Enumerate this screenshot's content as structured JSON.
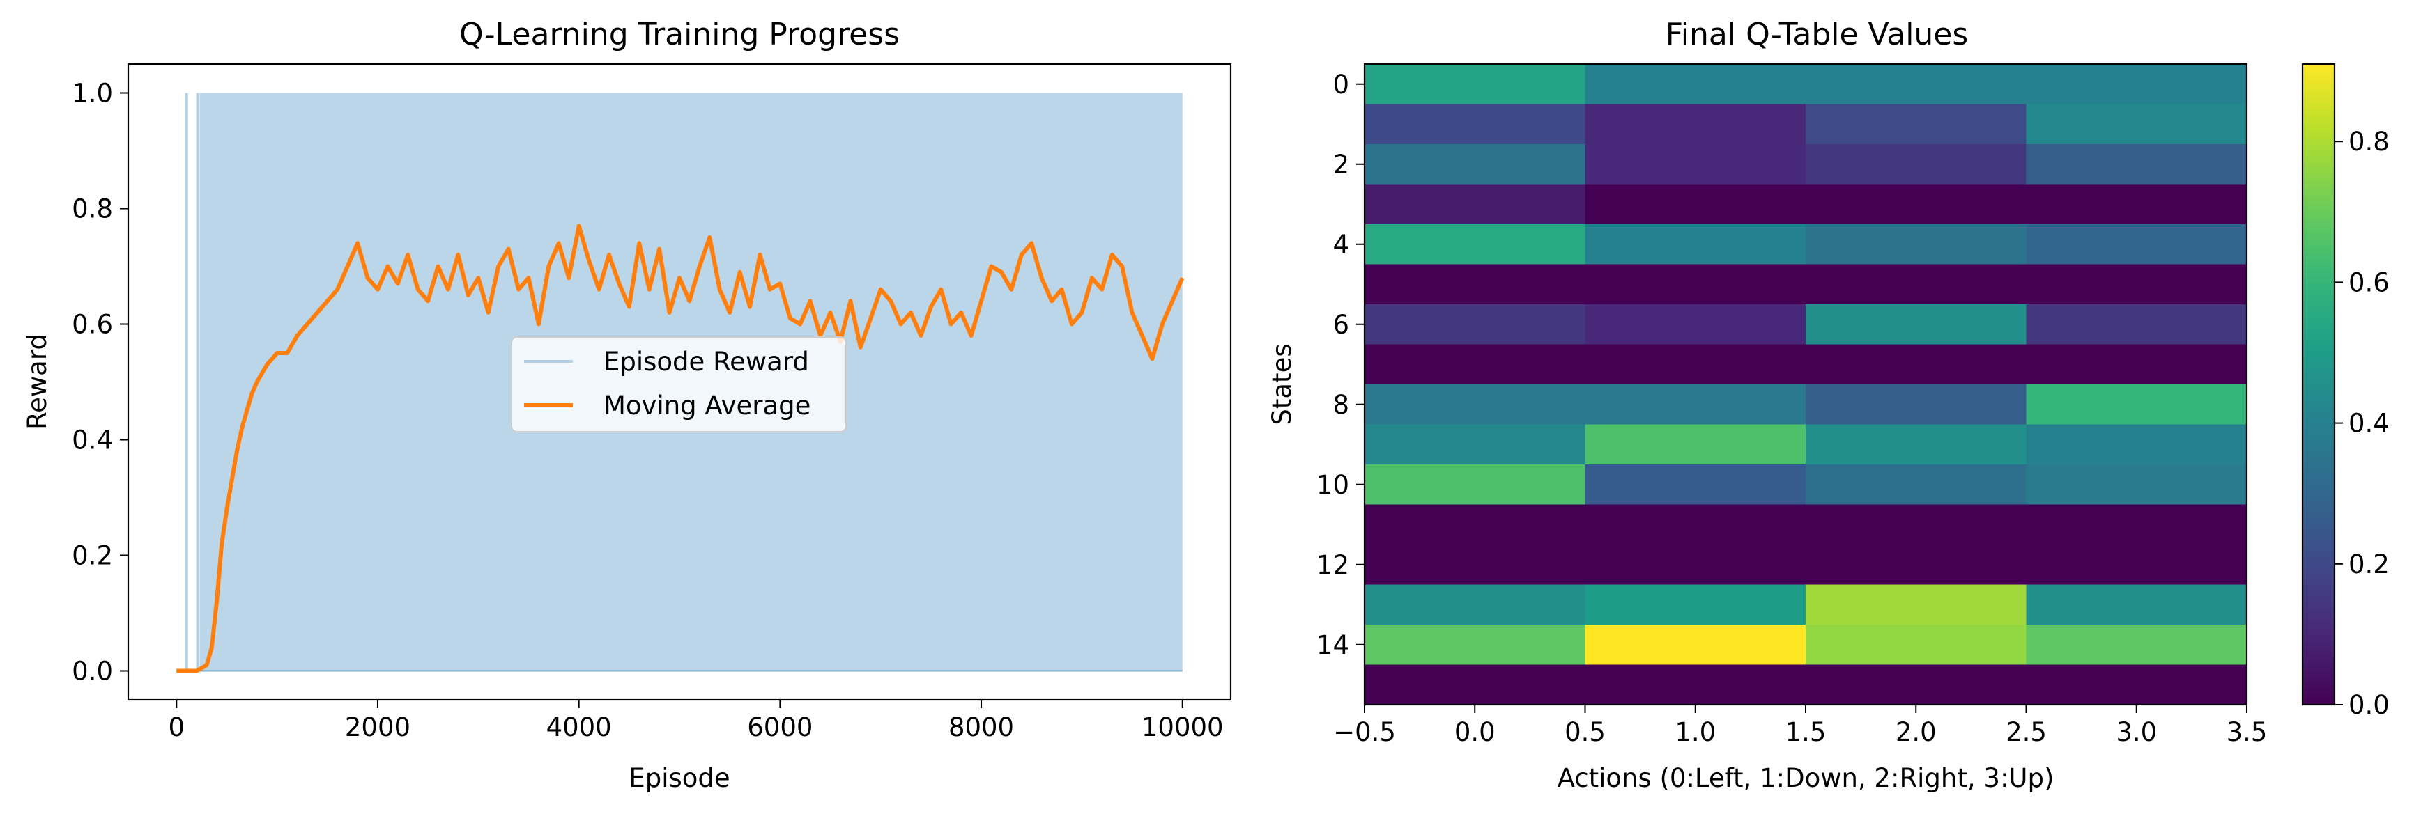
{
  "chart_data": [
    {
      "type": "line",
      "title": "Q-Learning Training Progress",
      "xlabel": "Episode",
      "ylabel": "Reward",
      "xlim": [
        -480,
        10480
      ],
      "ylim": [
        -0.05,
        1.05
      ],
      "xticks": [
        0,
        2000,
        4000,
        6000,
        8000,
        10000
      ],
      "yticks": [
        0.0,
        0.2,
        0.4,
        0.6,
        0.8,
        1.0
      ],
      "grid": false,
      "legend_position": "center",
      "series": [
        {
          "name": "Episode Reward",
          "color": "#1f77b4",
          "alpha": 0.3,
          "style": "binary 0/1 per episode (dense band)",
          "x_range": [
            0,
            10000
          ],
          "first_success_spikes": [
            100,
            210
          ],
          "dense_from": 230,
          "values": [
            0,
            1
          ]
        },
        {
          "name": "Moving Average",
          "color": "#ff7f0e",
          "x": [
            0,
            200,
            300,
            350,
            400,
            450,
            500,
            550,
            600,
            650,
            700,
            750,
            800,
            900,
            1000,
            1100,
            1200,
            1300,
            1400,
            1500,
            1600,
            1700,
            1800,
            1900,
            2000,
            2100,
            2200,
            2300,
            2400,
            2500,
            2600,
            2700,
            2800,
            2900,
            3000,
            3100,
            3200,
            3300,
            3400,
            3500,
            3600,
            3700,
            3800,
            3900,
            4000,
            4100,
            4200,
            4300,
            4400,
            4500,
            4600,
            4700,
            4800,
            4900,
            5000,
            5100,
            5200,
            5300,
            5400,
            5500,
            5600,
            5700,
            5800,
            5900,
            6000,
            6100,
            6200,
            6300,
            6400,
            6500,
            6600,
            6700,
            6800,
            6900,
            7000,
            7100,
            7200,
            7300,
            7400,
            7500,
            7600,
            7700,
            7800,
            7900,
            8000,
            8100,
            8200,
            8300,
            8400,
            8500,
            8600,
            8700,
            8800,
            8900,
            9000,
            9100,
            9200,
            9300,
            9400,
            9500,
            9600,
            9700,
            9800,
            9900,
            10000
          ],
          "values": [
            0.0,
            0.0,
            0.01,
            0.04,
            0.12,
            0.22,
            0.28,
            0.33,
            0.38,
            0.42,
            0.45,
            0.48,
            0.5,
            0.53,
            0.55,
            0.55,
            0.58,
            0.6,
            0.62,
            0.64,
            0.66,
            0.7,
            0.74,
            0.68,
            0.66,
            0.7,
            0.67,
            0.72,
            0.66,
            0.64,
            0.7,
            0.66,
            0.72,
            0.65,
            0.68,
            0.62,
            0.7,
            0.73,
            0.66,
            0.68,
            0.6,
            0.7,
            0.74,
            0.68,
            0.77,
            0.71,
            0.66,
            0.72,
            0.67,
            0.63,
            0.74,
            0.66,
            0.73,
            0.62,
            0.68,
            0.64,
            0.7,
            0.75,
            0.66,
            0.62,
            0.69,
            0.63,
            0.72,
            0.66,
            0.67,
            0.61,
            0.6,
            0.64,
            0.58,
            0.62,
            0.57,
            0.64,
            0.56,
            0.61,
            0.66,
            0.64,
            0.6,
            0.62,
            0.58,
            0.63,
            0.66,
            0.6,
            0.62,
            0.58,
            0.64,
            0.7,
            0.69,
            0.66,
            0.72,
            0.74,
            0.68,
            0.64,
            0.66,
            0.6,
            0.62,
            0.68,
            0.66,
            0.72,
            0.7,
            0.62,
            0.58,
            0.54,
            0.6,
            0.64,
            0.68
          ]
        }
      ]
    },
    {
      "type": "heatmap",
      "title": "Final Q-Table Values",
      "xlabel": "Actions (0:Left, 1:Down, 2:Right, 3:Up)",
      "ylabel": "States",
      "xlim": [
        -0.5,
        3.5
      ],
      "ylim": [
        15.5,
        -0.5
      ],
      "xticks": [
        -0.5,
        0.0,
        0.5,
        1.0,
        1.5,
        2.0,
        2.5,
        3.0,
        3.5
      ],
      "xtick_labels": [
        "−0.5",
        "0.0",
        "0.5",
        "1.0",
        "1.5",
        "2.0",
        "2.5",
        "3.0",
        "3.5"
      ],
      "yticks": [
        0,
        2,
        4,
        6,
        8,
        10,
        12,
        14
      ],
      "colormap": "viridis",
      "vmin": 0.0,
      "vmax": 0.91,
      "colorbar_ticks": [
        0.0,
        0.2,
        0.4,
        0.6,
        0.8
      ],
      "values": [
        [
          0.53,
          0.4,
          0.4,
          0.4
        ],
        [
          0.2,
          0.1,
          0.21,
          0.43
        ],
        [
          0.35,
          0.1,
          0.15,
          0.27
        ],
        [
          0.07,
          0.0,
          0.0,
          0.0
        ],
        [
          0.55,
          0.4,
          0.35,
          0.3
        ],
        [
          0.0,
          0.0,
          0.0,
          0.0
        ],
        [
          0.15,
          0.1,
          0.45,
          0.15
        ],
        [
          0.0,
          0.0,
          0.0,
          0.0
        ],
        [
          0.37,
          0.37,
          0.27,
          0.6
        ],
        [
          0.43,
          0.65,
          0.45,
          0.4
        ],
        [
          0.65,
          0.26,
          0.33,
          0.38
        ],
        [
          0.0,
          0.0,
          0.0,
          0.0
        ],
        [
          0.0,
          0.0,
          0.0,
          0.0
        ],
        [
          0.45,
          0.5,
          0.78,
          0.45
        ],
        [
          0.68,
          0.91,
          0.76,
          0.68
        ],
        [
          0.0,
          0.0,
          0.0,
          0.0
        ]
      ]
    }
  ]
}
